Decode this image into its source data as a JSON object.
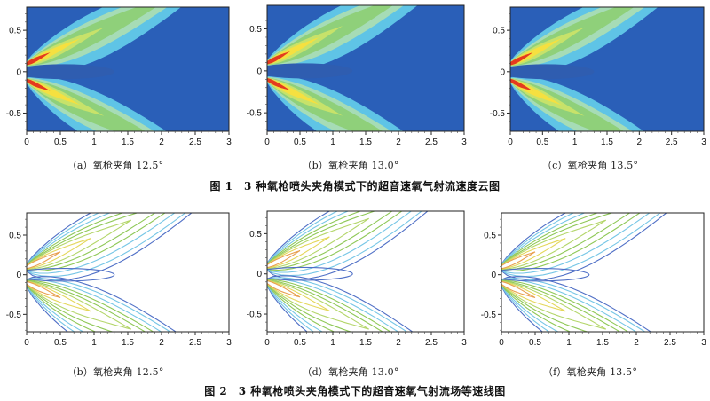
{
  "figure1": {
    "caption": "图 1　3 种氧枪喷头夹角模式下的超音速氧气射流速度云图",
    "panels": [
      {
        "label": "（a）氧枪夹角 12.5°"
      },
      {
        "label": "（b）氧枪夹角 13.0°"
      },
      {
        "label": "（c）氧枪夹角 13.5°"
      }
    ]
  },
  "figure2": {
    "caption": "图 2　3 种氧枪喷头夹角模式下的超音速氧气射流场等速线图",
    "panels": [
      {
        "label": "（b）氧枪夹角 12.5°"
      },
      {
        "label": "（d）氧枪夹角 13.0°"
      },
      {
        "label": "（f）氧枪夹角 13.5°"
      }
    ]
  },
  "axes": {
    "x_ticks": [
      "0",
      "0.5",
      "1",
      "1.5",
      "2",
      "2.5",
      "3"
    ],
    "y_ticks": [
      "0.5",
      "0",
      "-0.5"
    ]
  },
  "colors": {
    "contour_background": "#2a5fb8",
    "contour_mid": "#5fc4e6",
    "contour_green": "#8fd07a",
    "contour_yellow": "#f5e040",
    "contour_red": "#e43a1f",
    "line_blue": "#4f6fc6",
    "line_cyan": "#76c6e6",
    "line_green": "#8fc857"
  }
}
